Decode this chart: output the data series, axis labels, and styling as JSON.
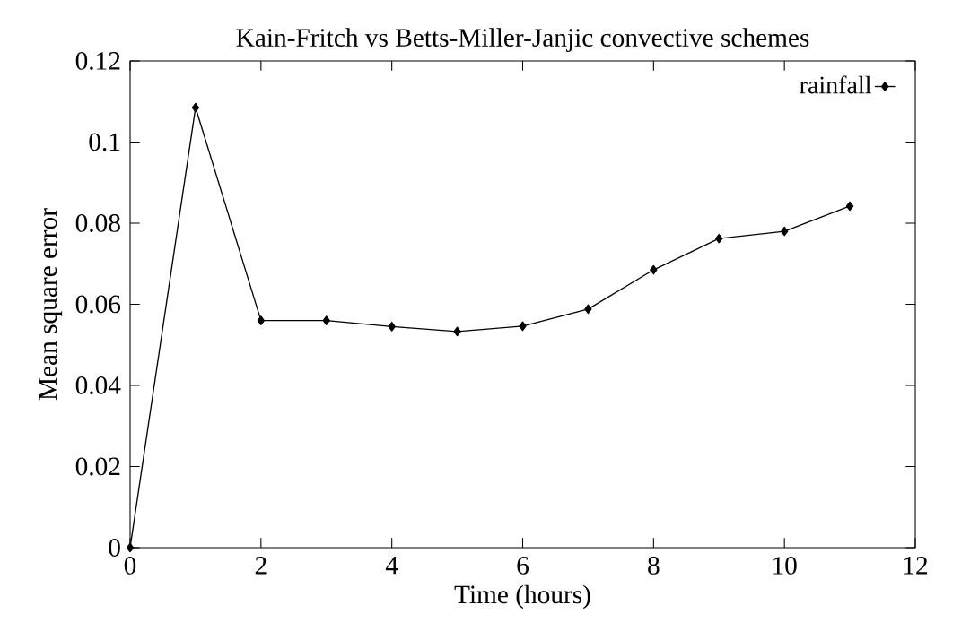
{
  "chart_data": {
    "type": "line",
    "title": "Kain-Fritch vs Betts-Miller-Janjic convective schemes",
    "xlabel": "Time (hours)",
    "ylabel": "Mean square error",
    "x": [
      0,
      1,
      2,
      3,
      4,
      5,
      6,
      7,
      8,
      9,
      10,
      11
    ],
    "series": [
      {
        "name": "rainfall",
        "color": "#000000",
        "values": [
          0,
          0.1085,
          0.056,
          0.056,
          0.0545,
          0.0533,
          0.0546,
          0.0588,
          0.0685,
          0.0762,
          0.078,
          0.0842
        ]
      }
    ],
    "xlim": [
      0,
      12
    ],
    "ylim": [
      0,
      0.12
    ],
    "xticks": [
      0,
      2,
      4,
      6,
      8,
      10,
      12
    ],
    "yticks": [
      0,
      0.02,
      0.04,
      0.06,
      0.08,
      0.1,
      0.12
    ],
    "grid": false,
    "legend": "top right",
    "marker": "diamond",
    "line_style": "solid"
  }
}
